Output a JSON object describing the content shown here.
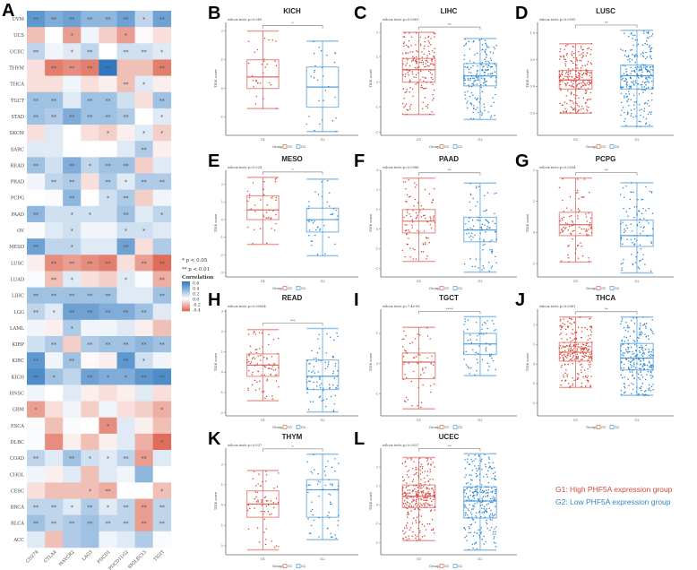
{
  "heatmap": {
    "panel_letter": "A",
    "columns": [
      "CD274",
      "CTLA4",
      "HAVCR2",
      "LAG3",
      "PDCD1",
      "PDCD1LG2",
      "SIGLEC15",
      "TIGIT"
    ],
    "rows": [
      {
        "name": "UVM",
        "values": [
          0.5,
          0.4,
          0.45,
          0.35,
          0.35,
          0.45,
          0.2,
          0.45
        ],
        "sig": [
          "**",
          "**",
          "**",
          "**",
          "**",
          "**",
          "*",
          "**"
        ]
      },
      {
        "name": "UCS",
        "values": [
          -0.2,
          0,
          -0.3,
          0.05,
          -0.15,
          -0.3,
          -0.02,
          -0.1
        ],
        "sig": [
          "",
          "",
          "*",
          "",
          "",
          "*",
          "",
          ""
        ]
      },
      {
        "name": "UCEC",
        "values": [
          0.2,
          0.05,
          0.1,
          0.2,
          0,
          0.15,
          0.15,
          0.1
        ],
        "sig": [
          "**",
          "",
          "*",
          "**",
          "",
          "**",
          "**",
          "*"
        ]
      },
      {
        "name": "THYM",
        "values": [
          -0.1,
          -0.4,
          -0.35,
          -0.4,
          0.65,
          -0.2,
          -0.2,
          -0.4
        ],
        "sig": [
          "",
          "**",
          "**",
          "**",
          "**",
          "",
          "",
          "**"
        ]
      },
      {
        "name": "THCA",
        "values": [
          -0.1,
          -0.1,
          0.05,
          -0.1,
          -0.05,
          -0.2,
          0.1,
          -0.05
        ],
        "sig": [
          "",
          "",
          "",
          "",
          "",
          "**",
          "*",
          ""
        ]
      },
      {
        "name": "TGCT",
        "values": [
          0.3,
          0.3,
          0.1,
          0.3,
          0.3,
          0.15,
          -0.1,
          0.3
        ],
        "sig": [
          "**",
          "**",
          "",
          "**",
          "**",
          "",
          "",
          "**"
        ]
      },
      {
        "name": "STAD",
        "values": [
          0.3,
          0.25,
          0.4,
          0.3,
          0.3,
          0.25,
          0,
          0.1
        ],
        "sig": [
          "**",
          "**",
          "**",
          "**",
          "**",
          "**",
          "",
          "*"
        ]
      },
      {
        "name": "SKCM",
        "values": [
          -0.1,
          0.1,
          0,
          -0.1,
          -0.15,
          -0.05,
          0.1,
          -0.15
        ],
        "sig": [
          "",
          "",
          "",
          "",
          "*",
          "",
          "*",
          "*"
        ]
      },
      {
        "name": "SARC",
        "values": [
          0.1,
          0.1,
          0,
          0,
          0,
          0.1,
          0.25,
          -0.05
        ],
        "sig": [
          "",
          "",
          "",
          "",
          "",
          "",
          "**",
          ""
        ]
      },
      {
        "name": "READ",
        "values": [
          0.3,
          0.15,
          0.4,
          0.2,
          0.3,
          0.3,
          -0.15,
          0.1
        ],
        "sig": [
          "**",
          "",
          "**",
          "*",
          "**",
          "**",
          "",
          ""
        ]
      },
      {
        "name": "PRAD",
        "values": [
          0.05,
          0.2,
          0.25,
          -0.1,
          0.25,
          0.1,
          0.25,
          0.25
        ],
        "sig": [
          "",
          "**",
          "**",
          "",
          "**",
          "*",
          "**",
          "**"
        ]
      },
      {
        "name": "PCPG",
        "values": [
          0,
          0.02,
          0.35,
          0,
          0.15,
          0.25,
          -0.15,
          0.05
        ],
        "sig": [
          "",
          "",
          "**",
          "",
          "*",
          "**",
          "",
          ""
        ]
      },
      {
        "name": "PAAD",
        "values": [
          0.35,
          0.15,
          0.15,
          0.15,
          0.15,
          0.3,
          0.1,
          0.2
        ],
        "sig": [
          "**",
          "",
          "*",
          "*",
          "",
          "**",
          "",
          "*"
        ]
      },
      {
        "name": "OV",
        "values": [
          0.02,
          0.1,
          0.15,
          0.05,
          0.05,
          0.15,
          0.15,
          0.1
        ],
        "sig": [
          "",
          "",
          "*",
          "",
          "",
          "*",
          "*",
          ""
        ]
      },
      {
        "name": "MESO",
        "values": [
          0.45,
          0.2,
          0.2,
          0.1,
          0.1,
          0.45,
          -0.1,
          0.25
        ],
        "sig": [
          "**",
          "",
          "*",
          "",
          "",
          "**",
          "",
          ""
        ]
      },
      {
        "name": "LUSC",
        "values": [
          -0.05,
          -0.35,
          -0.3,
          -0.35,
          -0.4,
          -0.1,
          -0.3,
          -0.45
        ],
        "sig": [
          "",
          "**",
          "**",
          "**",
          "**",
          "",
          "**",
          "**"
        ]
      },
      {
        "name": "LUAD",
        "values": [
          0.02,
          -0.2,
          0.1,
          -0.1,
          -0.15,
          0.1,
          0.02,
          -0.25
        ],
        "sig": [
          "",
          "**",
          "*",
          "",
          "",
          "*",
          "",
          "**"
        ]
      },
      {
        "name": "LIHC",
        "values": [
          0.3,
          0.3,
          0.3,
          0.3,
          0.3,
          0.1,
          0.1,
          0.3
        ],
        "sig": [
          "**",
          "**",
          "**",
          "**",
          "**",
          "",
          "",
          "**"
        ]
      },
      {
        "name": "LGG",
        "values": [
          0.2,
          0.1,
          0.45,
          0.45,
          0.4,
          0.4,
          0.3,
          0.1
        ],
        "sig": [
          "**",
          "*",
          "**",
          "**",
          "**",
          "**",
          "**",
          ""
        ]
      },
      {
        "name": "LAML",
        "values": [
          0.05,
          -0.05,
          0.25,
          0.05,
          0.05,
          0.1,
          -0.05,
          -0.2
        ],
        "sig": [
          "",
          "",
          "*",
          "",
          "",
          "",
          "",
          ""
        ]
      },
      {
        "name": "KIRP",
        "values": [
          0.15,
          0.25,
          -0.15,
          0.25,
          0.3,
          0.3,
          0.35,
          0.3
        ],
        "sig": [
          "",
          "**",
          "",
          "**",
          "**",
          "**",
          "**",
          "**"
        ]
      },
      {
        "name": "KIRC",
        "values": [
          0.5,
          0.05,
          0.3,
          -0.02,
          -0.05,
          0.5,
          0.15,
          0.05
        ],
        "sig": [
          "**",
          "",
          "**",
          "",
          "",
          "**",
          "*",
          ""
        ]
      },
      {
        "name": "KICH",
        "values": [
          0.55,
          0.3,
          0.2,
          0.45,
          0.4,
          0.4,
          0.5,
          0.55
        ],
        "sig": [
          "**",
          "*",
          "",
          "**",
          "*",
          "*",
          "**",
          "**"
        ]
      },
      {
        "name": "HNSC",
        "values": [
          0.05,
          0,
          0.1,
          -0.05,
          -0.1,
          -0.05,
          0.1,
          -0.1
        ],
        "sig": [
          "",
          "",
          "",
          "",
          "",
          "",
          "",
          ""
        ]
      },
      {
        "name": "GBM",
        "values": [
          -0.3,
          -0.1,
          0.05,
          -0.15,
          0.05,
          -0.1,
          -0.15,
          -0.25
        ],
        "sig": [
          "*",
          "",
          "",
          "",
          "",
          "",
          "",
          "*"
        ]
      },
      {
        "name": "ESCA",
        "values": [
          0.02,
          -0.2,
          0.02,
          0,
          -0.35,
          0.1,
          -0.05,
          -0.2
        ],
        "sig": [
          "",
          "",
          "",
          "",
          "*",
          "",
          "",
          ""
        ]
      },
      {
        "name": "DLBC",
        "values": [
          0.02,
          -0.35,
          -0.05,
          -0.2,
          -0.05,
          0.1,
          -0.25,
          -0.5
        ],
        "sig": [
          "",
          "",
          "",
          "",
          "",
          "",
          "",
          "*"
        ]
      },
      {
        "name": "COAD",
        "values": [
          0.2,
          0.1,
          0.3,
          0.15,
          0.1,
          0.2,
          -0.3,
          0.1
        ],
        "sig": [
          "**",
          "",
          "**",
          "*",
          "*",
          "**",
          "**",
          ""
        ]
      },
      {
        "name": "CHOL",
        "values": [
          0.05,
          -0.05,
          0.1,
          -0.2,
          0.1,
          0.05,
          0.35,
          0
        ],
        "sig": [
          "",
          "",
          "",
          "",
          "",
          "",
          "",
          ""
        ]
      },
      {
        "name": "CESC",
        "values": [
          -0.1,
          -0.2,
          -0.2,
          -0.2,
          -0.25,
          0,
          0,
          -0.2
        ],
        "sig": [
          "",
          "",
          "",
          "*",
          "**",
          "",
          "",
          "*"
        ]
      },
      {
        "name": "BRCA",
        "values": [
          0.2,
          0.2,
          0.1,
          0.25,
          0.1,
          0.2,
          -0.3,
          0.2
        ],
        "sig": [
          "**",
          "**",
          "*",
          "**",
          "*",
          "**",
          "**",
          "**"
        ]
      },
      {
        "name": "BLCA",
        "values": [
          0.3,
          0.2,
          0.25,
          0.3,
          0.2,
          0.2,
          -0.3,
          0.2
        ],
        "sig": [
          "**",
          "**",
          "**",
          "**",
          "**",
          "**",
          "**",
          "**"
        ]
      },
      {
        "name": "ACC",
        "values": [
          0.1,
          -0.2,
          0.25,
          0.3,
          0.05,
          0.1,
          0.25,
          0.02
        ],
        "sig": [
          "",
          "",
          "",
          "",
          "",
          "",
          "",
          ""
        ]
      }
    ],
    "legend": {
      "sig1": "* p < 0.05",
      "sig2": "** p < 0.01",
      "title": "Correlation",
      "ticks": [
        "0.6",
        "0.4",
        "0.2",
        "0.0",
        "-0.2",
        "-0.4"
      ]
    },
    "colors": {
      "positive": "#2F78C0",
      "zero": "#FFFFFF",
      "negative": "#DE6E5B"
    }
  },
  "boxplots": {
    "ylabel": "TIDE score",
    "categories": [
      "G1",
      "G2"
    ],
    "legend": {
      "title": "Group",
      "g1": "G1",
      "g2": "G2"
    },
    "colors": {
      "G1": "#D9473B",
      "G2": "#2C86D1"
    },
    "group_legend": {
      "g1": "G1: High PHF5A expression group",
      "g2": "G2: Low PHF5A expression group"
    }
  },
  "chart_data": [
    {
      "type": "box",
      "letter": "B",
      "title": "KICH",
      "test": "wilcox.tests p=0.049",
      "signif": "*",
      "yticks": [
        "2",
        "1",
        "0",
        "-1"
      ],
      "ylim": [
        -1.6,
        2.3
      ],
      "groups": {
        "G1": {
          "n": 30,
          "whisker_low": -0.7,
          "q1": 0.0,
          "median": 0.4,
          "q3": 1.0,
          "whisker_high": 2.0
        },
        "G2": {
          "n": 30,
          "whisker_low": -1.5,
          "q1": -0.65,
          "median": 0.05,
          "q3": 0.75,
          "whisker_high": 1.65
        }
      }
    },
    {
      "type": "box",
      "letter": "C",
      "title": "LIHC",
      "test": "wilcox.tests p=0.0081",
      "signif": "**",
      "yticks": [
        "2",
        "1",
        "0",
        "-1",
        "-2"
      ],
      "ylim": [
        -2.1,
        2.4
      ],
      "groups": {
        "G1": {
          "n": 180,
          "whisker_low": -1.3,
          "q1": 0.0,
          "median": 0.5,
          "q3": 0.95,
          "whisker_high": 2.0
        },
        "G2": {
          "n": 180,
          "whisker_low": -1.5,
          "q1": -0.15,
          "median": 0.25,
          "q3": 0.75,
          "whisker_high": 1.75
        }
      }
    },
    {
      "type": "box",
      "letter": "D",
      "title": "LUSC",
      "test": "wilcox.tests p=0.0095",
      "signif": "**",
      "yticks": [
        "1.0",
        "0.5",
        "0.0",
        "-0.5"
      ],
      "ylim": [
        -0.9,
        1.2
      ],
      "groups": {
        "G1": {
          "n": 250,
          "whisker_low": -0.5,
          "q1": -0.05,
          "median": 0.12,
          "q3": 0.3,
          "whisker_high": 0.8
        },
        "G2": {
          "n": 250,
          "whisker_low": -0.75,
          "q1": -0.05,
          "median": 0.2,
          "q3": 0.4,
          "whisker_high": 1.05
        }
      }
    },
    {
      "type": "box",
      "letter": "E",
      "title": "MESO",
      "test": "wilcox.tests p=0.024",
      "signif": "*",
      "yticks": [
        "2",
        "1",
        "0",
        "-1",
        "-2",
        "-3"
      ],
      "ylim": [
        -3.2,
        2.8
      ],
      "groups": {
        "G1": {
          "n": 40,
          "whisker_low": -1.4,
          "q1": 0.0,
          "median": 0.55,
          "q3": 1.35,
          "whisker_high": 2.4
        },
        "G2": {
          "n": 40,
          "whisker_low": -2.05,
          "q1": -0.7,
          "median": 0.0,
          "q3": 0.65,
          "whisker_high": 2.3
        }
      }
    },
    {
      "type": "box",
      "letter": "F",
      "title": "PAAD",
      "test": "wilcox.tests p=0.0086",
      "signif": "**",
      "yticks": [
        "3",
        "2",
        "1",
        "0",
        "-1",
        "-2"
      ],
      "ylim": [
        -2.4,
        3.0
      ],
      "groups": {
        "G1": {
          "n": 90,
          "whisker_low": -1.65,
          "q1": -0.2,
          "median": 0.4,
          "q3": 1.0,
          "whisker_high": 2.6
        },
        "G2": {
          "n": 90,
          "whisker_low": -2.2,
          "q1": -0.65,
          "median": -0.05,
          "q3": 0.6,
          "whisker_high": 2.35
        }
      }
    },
    {
      "type": "box",
      "letter": "G",
      "title": "PCPG",
      "test": "wilcox.tests p=0.0034",
      "signif": "**",
      "yticks": [
        "2",
        "1",
        "0",
        "-1"
      ],
      "ylim": [
        -1.4,
        2.0
      ],
      "groups": {
        "G1": {
          "n": 90,
          "whisker_low": -0.95,
          "q1": -0.1,
          "median": 0.25,
          "q3": 0.65,
          "whisker_high": 1.75
        },
        "G2": {
          "n": 90,
          "whisker_low": -1.3,
          "q1": -0.45,
          "median": -0.1,
          "q3": 0.4,
          "whisker_high": 1.6
        }
      }
    },
    {
      "type": "box",
      "letter": "H",
      "title": "READ",
      "test": "wilcox.tests p=0.00064",
      "signif": "***",
      "yticks": [
        "3",
        "2",
        "1",
        "0",
        "-1",
        "-2"
      ],
      "ylim": [
        -2.1,
        3.1
      ],
      "groups": {
        "G1": {
          "n": 80,
          "whisker_low": -1.4,
          "q1": -0.2,
          "median": 0.35,
          "q3": 0.9,
          "whisker_high": 2.1
        },
        "G2": {
          "n": 80,
          "whisker_low": -1.95,
          "q1": -0.85,
          "median": -0.2,
          "q3": 0.6,
          "whisker_high": 2.15
        }
      }
    },
    {
      "type": "box",
      "letter": "I",
      "title": "TGCT",
      "test": "wilcox.tests p=7.4e-08",
      "signif": "****",
      "yticks": [
        "1",
        "0",
        "-1"
      ],
      "ylim": [
        -1.7,
        1.8
      ],
      "groups": {
        "G1": {
          "n": 60,
          "whisker_low": -1.5,
          "q1": -0.5,
          "median": 0.05,
          "q3": 0.35,
          "whisker_high": 1.2
        },
        "G2": {
          "n": 60,
          "whisker_low": -0.4,
          "q1": 0.3,
          "median": 0.65,
          "q3": 1.0,
          "whisker_high": 1.55
        }
      }
    },
    {
      "type": "box",
      "letter": "J",
      "title": "THCA",
      "test": "wilcox.tests p=0.0061",
      "signif": "**",
      "yticks": [
        "2",
        "1",
        "0",
        "-1",
        "-2"
      ],
      "ylim": [
        -2.6,
        2.8
      ],
      "groups": {
        "G1": {
          "n": 250,
          "whisker_low": -1.2,
          "q1": 0.15,
          "median": 0.6,
          "q3": 1.1,
          "whisker_high": 2.4
        },
        "G2": {
          "n": 250,
          "whisker_low": -1.6,
          "q1": -0.3,
          "median": 0.3,
          "q3": 1.05,
          "whisker_high": 2.4
        }
      }
    },
    {
      "type": "box",
      "letter": "K",
      "title": "THYM",
      "test": "wilcox.tests p=0.037",
      "signif": "*",
      "yticks": [
        "2",
        "1",
        "0",
        "-1",
        "-2"
      ],
      "ylim": [
        -2.4,
        2.8
      ],
      "groups": {
        "G1": {
          "n": 60,
          "whisker_low": -2.2,
          "q1": -0.6,
          "median": 0.05,
          "q3": 0.7,
          "whisker_high": 1.7
        },
        "G2": {
          "n": 60,
          "whisker_low": -1.7,
          "q1": -0.6,
          "median": 0.75,
          "q3": 1.25,
          "whisker_high": 2.5
        }
      }
    },
    {
      "type": "box",
      "letter": "L",
      "title": "UCEC",
      "test": "wilcox.tests p=0.0027",
      "signif": "**",
      "yticks": [
        "2",
        "1",
        "0",
        "-1",
        "-2"
      ],
      "ylim": [
        -2.6,
        3.0
      ],
      "groups": {
        "G1": {
          "n": 270,
          "whisker_low": -1.9,
          "q1": -0.15,
          "median": 0.45,
          "q3": 1.05,
          "whisker_high": 2.5
        },
        "G2": {
          "n": 270,
          "whisker_low": -2.4,
          "q1": -0.7,
          "median": 0.2,
          "q3": 0.95,
          "whisker_high": 2.7
        }
      }
    }
  ]
}
